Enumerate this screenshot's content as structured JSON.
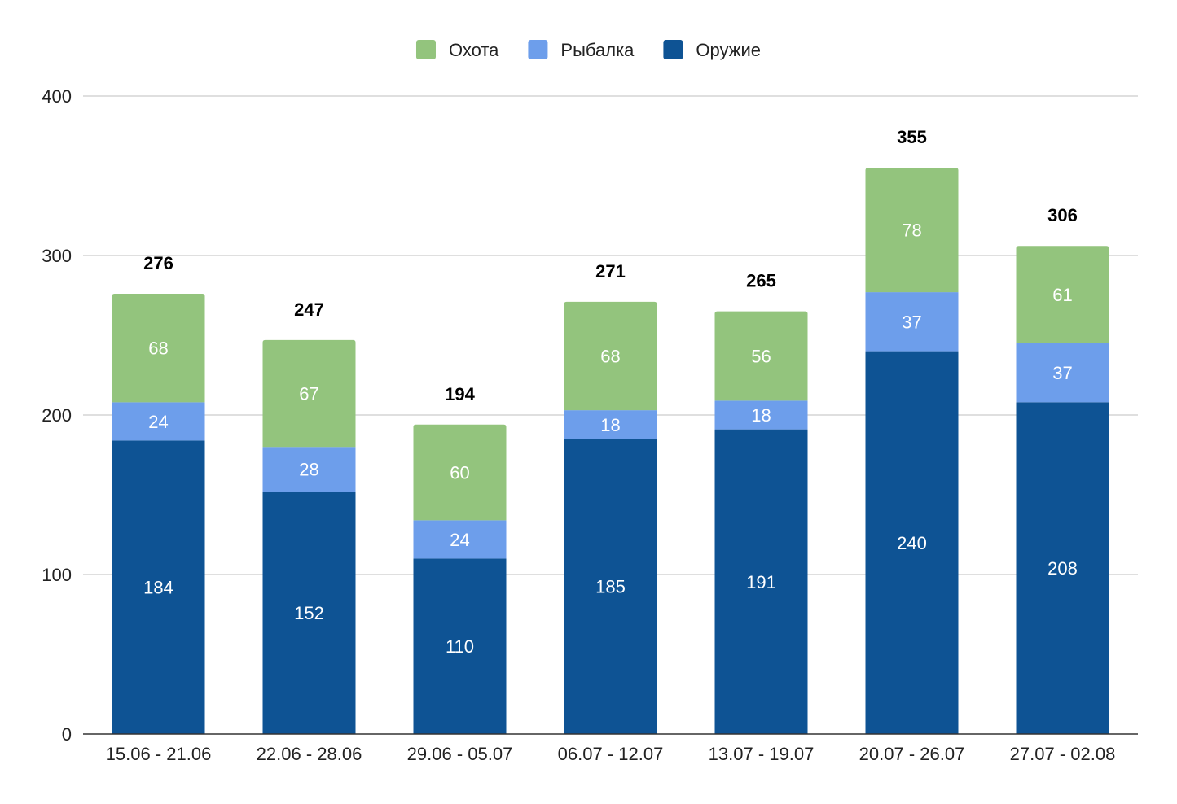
{
  "chart_data": {
    "type": "bar",
    "stacked": true,
    "categories": [
      "15.06 - 21.06",
      "22.06 - 28.06",
      "29.06 - 05.07",
      "06.07 - 12.07",
      "13.07 - 19.07",
      "20.07 - 26.07",
      "27.07 - 02.08"
    ],
    "series": [
      {
        "name": "Оружие",
        "color": "#0E5394",
        "values": [
          184,
          152,
          110,
          185,
          191,
          240,
          208
        ]
      },
      {
        "name": "Рыбалка",
        "color": "#6D9EEB",
        "values": [
          24,
          28,
          24,
          18,
          18,
          37,
          37
        ]
      },
      {
        "name": "Охота",
        "color": "#93C47D",
        "values": [
          68,
          67,
          60,
          68,
          56,
          78,
          61
        ]
      }
    ],
    "totals": [
      276,
      247,
      194,
      271,
      265,
      355,
      306
    ],
    "legend_order": [
      "Охота",
      "Рыбалка",
      "Оружие"
    ],
    "legend_position": "top",
    "ylim": [
      0,
      400
    ],
    "yticks": [
      0,
      100,
      200,
      300,
      400
    ],
    "grid": true,
    "title": "",
    "xlabel": "",
    "ylabel": ""
  }
}
